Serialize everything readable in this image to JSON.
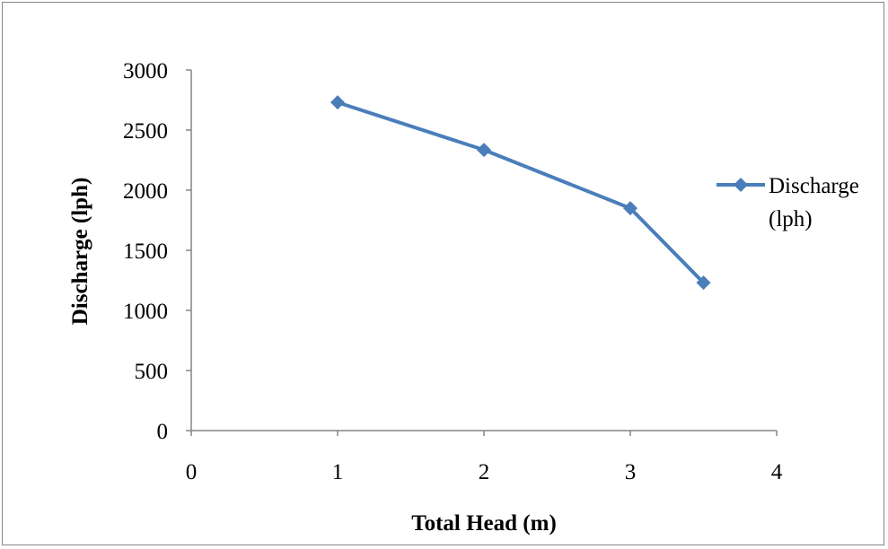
{
  "chart_data": {
    "type": "scatter",
    "title": "",
    "xlabel": "Total Head (m)",
    "ylabel": "Discharge (lph)",
    "xlim": [
      0,
      4
    ],
    "ylim": [
      0,
      3000
    ],
    "x_ticks": [
      0,
      1,
      2,
      3,
      4
    ],
    "y_ticks": [
      0,
      500,
      1000,
      1500,
      2000,
      2500,
      3000
    ],
    "grid": false,
    "legend_position": "right",
    "series": [
      {
        "name": "Discharge (lph)",
        "legend_lines": [
          "Discharge",
          "(lph)"
        ],
        "color": "#4a7ebb",
        "marker": "diamond",
        "x": [
          1,
          2,
          3,
          3.5
        ],
        "y": [
          2730,
          2335,
          1850,
          1230
        ]
      }
    ]
  }
}
